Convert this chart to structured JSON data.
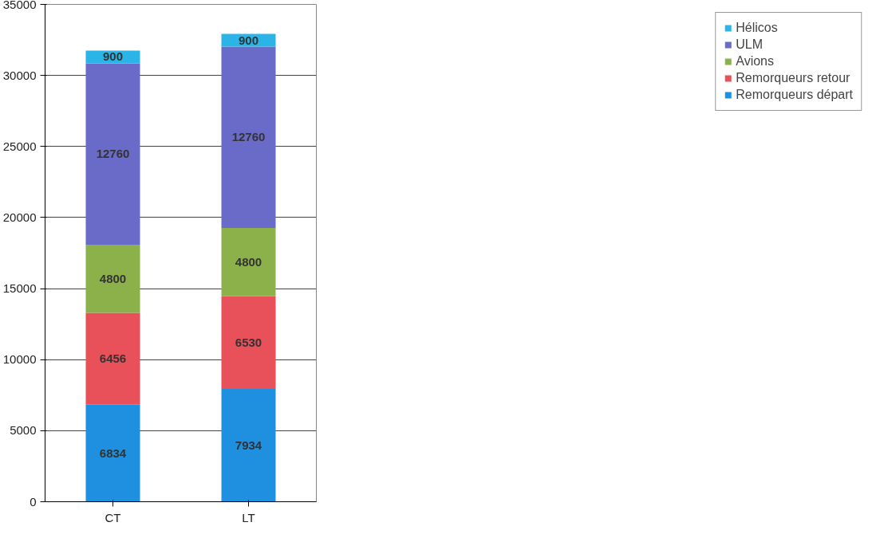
{
  "chart_data": {
    "type": "bar",
    "stacked": true,
    "categories": [
      "CT",
      "LT"
    ],
    "series": [
      {
        "name": "Remorqueurs départ",
        "color": "#1f8fe0",
        "values": [
          6834,
          7934
        ]
      },
      {
        "name": "Remorqueurs retour",
        "color": "#e8505a",
        "values": [
          6456,
          6530
        ]
      },
      {
        "name": "Avions",
        "color": "#8cb04a",
        "values": [
          4800,
          4800
        ]
      },
      {
        "name": "ULM",
        "color": "#6a6ac8",
        "values": [
          12760,
          12760
        ]
      },
      {
        "name": "Hélicos",
        "color": "#2ab4e8",
        "values": [
          900,
          900
        ]
      }
    ],
    "ylim": [
      0,
      35000
    ],
    "yticks": [
      0,
      5000,
      10000,
      15000,
      20000,
      25000,
      30000,
      35000
    ],
    "grid": "y",
    "legend": "right",
    "data_labels": true
  }
}
